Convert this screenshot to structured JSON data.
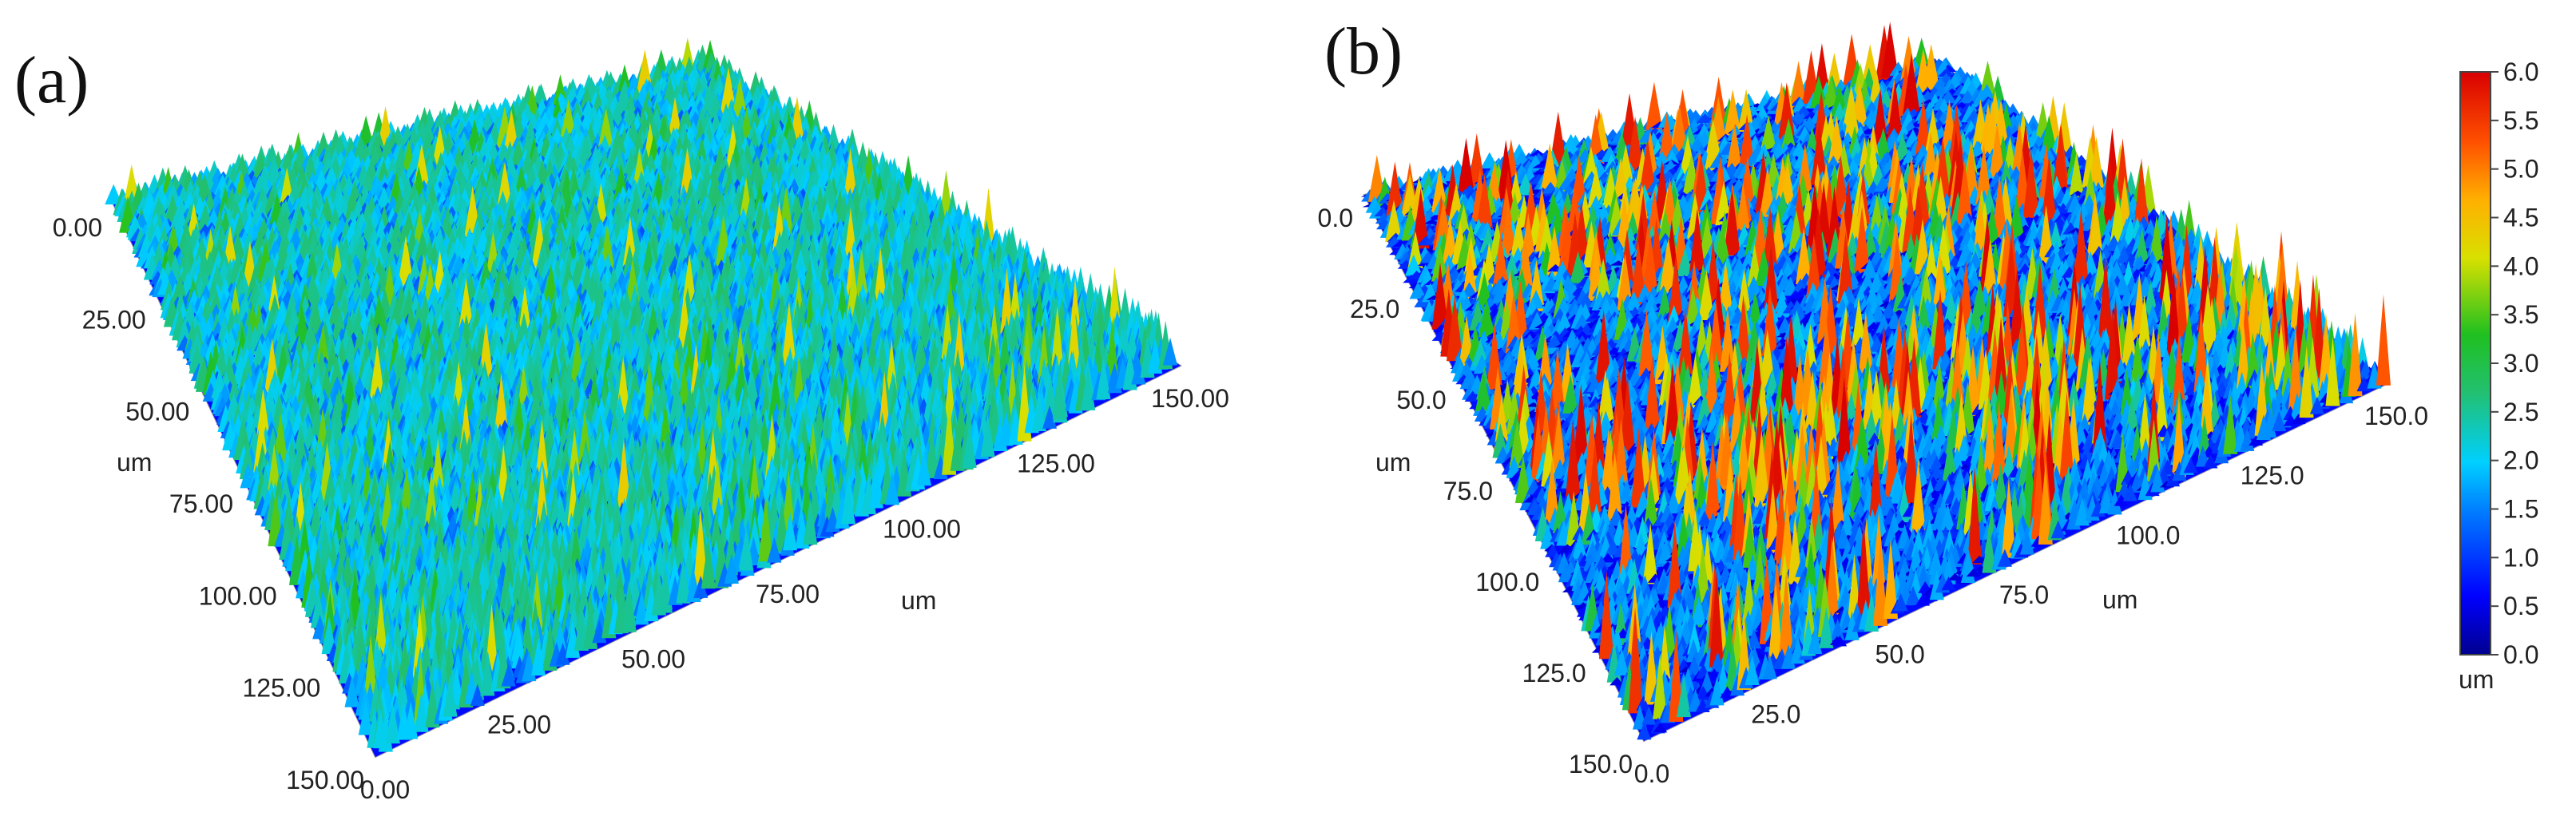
{
  "chart_data": [
    {
      "type": "surface3d",
      "panel_label": "(a)",
      "title": "",
      "y_axis": {
        "label": "um",
        "ticks": [
          "0.00",
          "25.00",
          "50.00",
          "75.00",
          "100.00",
          "125.00",
          "150.00"
        ],
        "range": [
          0,
          150
        ]
      },
      "x_axis": {
        "label": "um",
        "ticks": [
          "0.00",
          "25.00",
          "50.00",
          "75.00",
          "100.00",
          "125.00",
          "150.00"
        ],
        "range": [
          0,
          150
        ]
      },
      "z_range_um": [
        0,
        4.5
      ],
      "description_values": {
        "typical_height_um": 1.8,
        "max_height_um": 4.5
      }
    },
    {
      "type": "surface3d",
      "panel_label": "(b)",
      "title": "",
      "y_axis": {
        "label": "um",
        "ticks": [
          "0.0",
          "25.0",
          "50.0",
          "75.0",
          "100.0",
          "125.0",
          "150.0"
        ],
        "range": [
          0,
          150
        ]
      },
      "x_axis": {
        "label": "um",
        "ticks": [
          "0.0",
          "25.0",
          "50.0",
          "75.0",
          "100.0",
          "125.0",
          "150.0"
        ],
        "range": [
          0,
          150
        ]
      },
      "z_range_um": [
        0,
        6.0
      ],
      "description_values": {
        "typical_height_um": 1.2,
        "max_height_um": 6.0
      }
    }
  ],
  "colorbar": {
    "unit": "um",
    "ticks": [
      "6.0",
      "5.5",
      "5.0",
      "4.5",
      "4.0",
      "3.5",
      "3.0",
      "2.5",
      "2.0",
      "1.5",
      "1.0",
      "0.5",
      "0.0"
    ],
    "range": [
      0,
      6
    ],
    "colors": [
      "#00008f",
      "#0000ff",
      "#0080ff",
      "#00d0ff",
      "#22c070",
      "#20c020",
      "#d8e000",
      "#ffb000",
      "#ff5000",
      "#d80000"
    ]
  }
}
